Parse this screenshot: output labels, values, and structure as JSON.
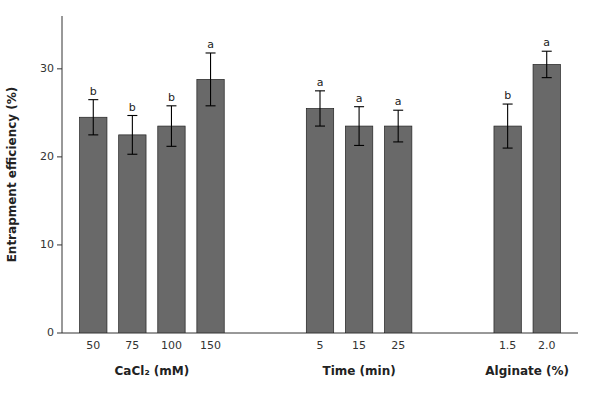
{
  "chart_data": {
    "type": "bar",
    "ylabel": "Entrapment efficiency (%)",
    "color": "#696969",
    "ylim": [
      0,
      36
    ],
    "yticks": [
      0,
      10,
      20,
      30
    ],
    "groups": [
      {
        "label": "CaCl₂ (mM)",
        "categories": [
          "50",
          "75",
          "100",
          "150"
        ],
        "values": [
          24.5,
          22.5,
          23.5,
          28.8
        ],
        "errors": [
          2.0,
          2.2,
          2.3,
          3.0
        ],
        "annotations": [
          "b",
          "b",
          "b",
          "a"
        ]
      },
      {
        "label": "Time (min)",
        "categories": [
          "5",
          "15",
          "25"
        ],
        "values": [
          25.5,
          23.5,
          23.5
        ],
        "errors": [
          2.0,
          2.2,
          1.8
        ],
        "annotations": [
          "a",
          "a",
          "a"
        ]
      },
      {
        "label": "Alginate (%)",
        "categories": [
          "1.5",
          "2.0"
        ],
        "values": [
          23.5,
          30.5
        ],
        "errors": [
          2.5,
          1.5
        ],
        "annotations": [
          "b",
          "a"
        ]
      }
    ]
  }
}
